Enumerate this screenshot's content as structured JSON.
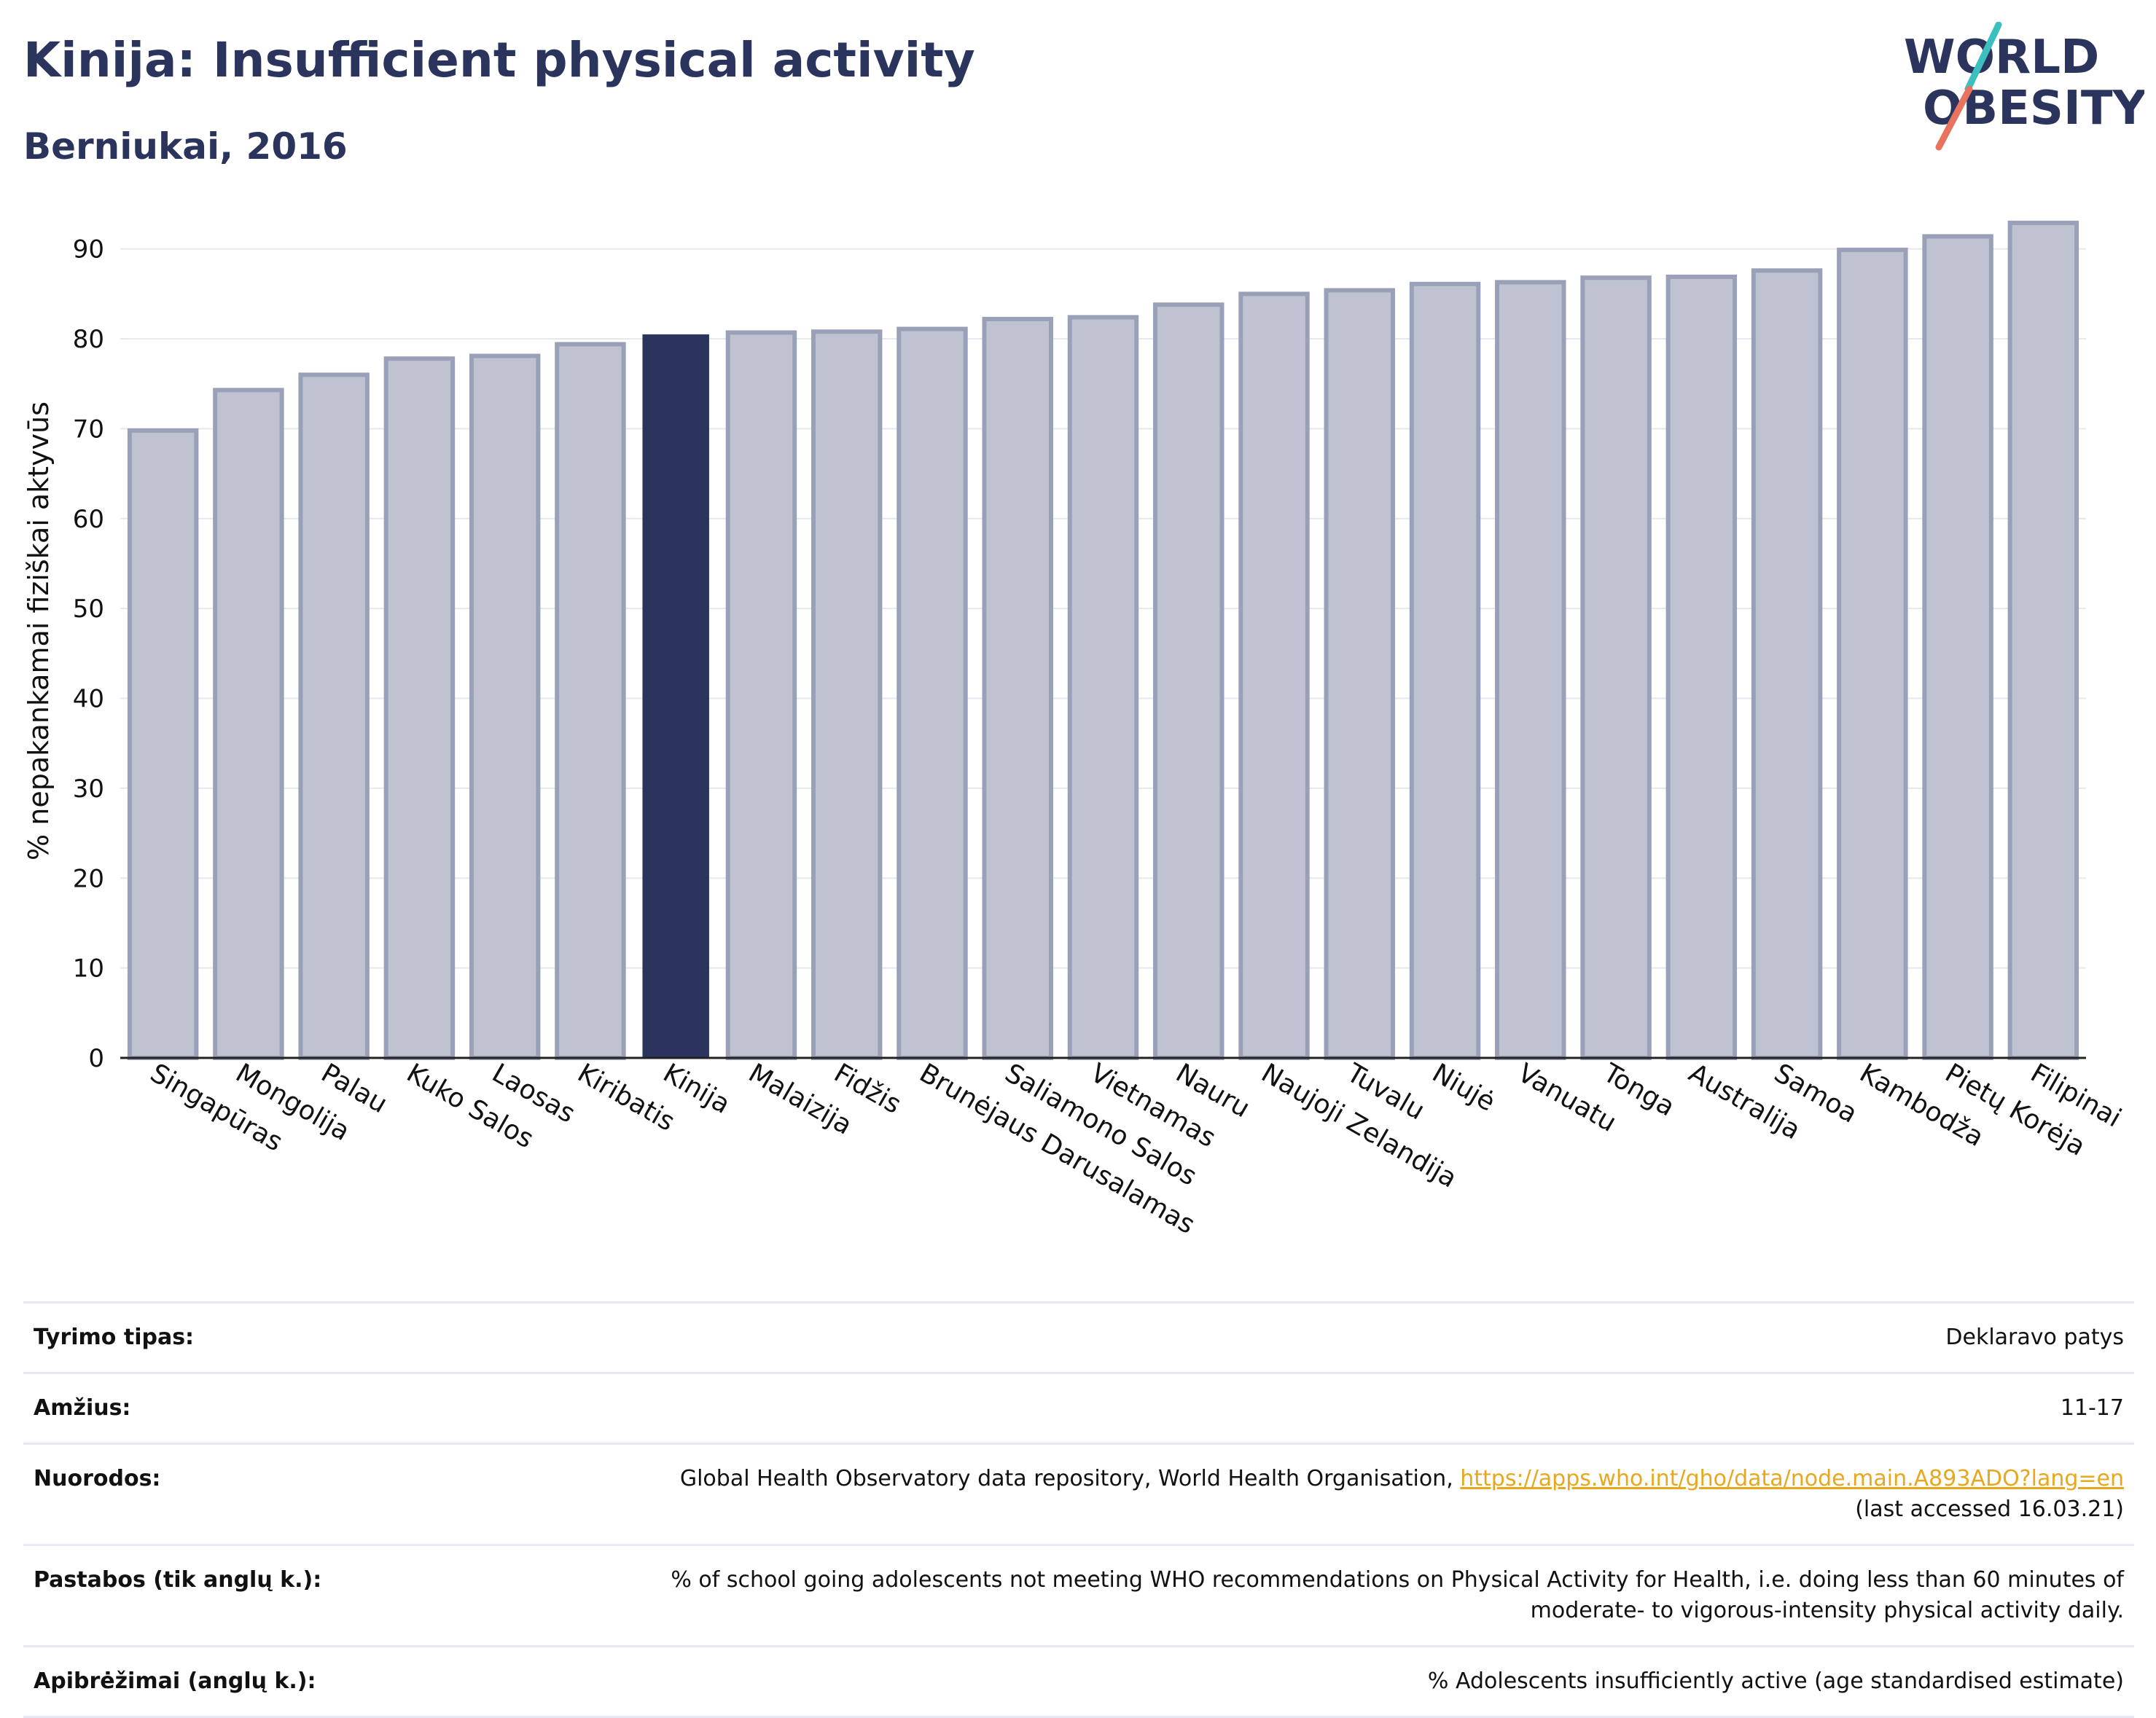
{
  "title": "Kinija: Insufficient physical activity",
  "subtitle": "Berniukai, 2016",
  "logo": {
    "line1": "WORLD",
    "line2": "OBESITY",
    "icon": "world-obesity-logo"
  },
  "colors": {
    "bar": "#bfc3d1",
    "bar_stroke": "#9aa0b8",
    "highlight": "#2a345c",
    "grid": "#e6e8ef",
    "accent_teal": "#3bbfbf",
    "accent_coral": "#e8735f"
  },
  "chart_data": {
    "type": "bar",
    "title": "",
    "xlabel": "",
    "ylabel": "% nepakankamai fiziškai aktyvūs",
    "ylim": [
      0,
      95
    ],
    "yticks": [
      0,
      10,
      20,
      30,
      40,
      50,
      60,
      70,
      80,
      90
    ],
    "grid": true,
    "highlight": "Kinija",
    "categories": [
      "Singapūras",
      "Mongolija",
      "Palau",
      "Kuko Salos",
      "Laosas",
      "Kiribatis",
      "Kinija",
      "Malaizija",
      "Fidžis",
      "Brunėjaus Darusalamas",
      "Saliamono Salos",
      "Vietnamas",
      "Nauru",
      "Naujoji Zelandija",
      "Tuvalu",
      "Niujė",
      "Vanuatu",
      "Tonga",
      "Australija",
      "Samoa",
      "Kambodža",
      "Pietų Korėja",
      "Filipinai"
    ],
    "values": [
      69.8,
      74.3,
      76.0,
      77.8,
      78.1,
      79.4,
      80.5,
      80.7,
      80.8,
      81.1,
      82.2,
      82.4,
      83.8,
      85.0,
      85.4,
      86.1,
      86.3,
      86.8,
      86.9,
      87.6,
      89.9,
      91.4,
      92.9
    ]
  },
  "info": {
    "survey_label": "Tyrimo tipas:",
    "survey_value": "Deklaravo patys",
    "age_label": "Amžius:",
    "age_value": "11-17",
    "refs_label": "Nuorodos:",
    "refs_text": "Global Health Observatory data repository, World Health Organisation, ",
    "refs_link": "https://apps.who.int/gho/data/node.main.A893ADO?lang=en",
    "refs_accessed": "(last accessed 16.03.21)",
    "notes_label": "Pastabos (tik anglų k.):",
    "notes_line1": "% of school going adolescents not meeting WHO recommendations on Physical Activity for Health, i.e. doing less than 60 minutes of",
    "notes_line2": "moderate- to vigorous-intensity physical activity daily.",
    "defs_label": "Apibrėžimai (anglų k.):",
    "defs_value": "% Adolescents insufficiently active (age standardised estimate)"
  }
}
